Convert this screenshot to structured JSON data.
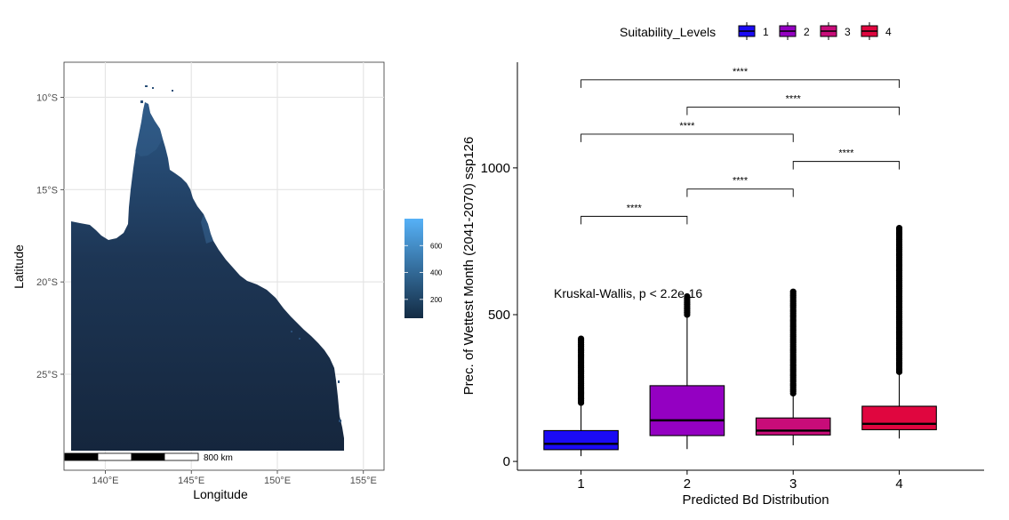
{
  "chart_data": [
    {
      "type": "heatmap",
      "subtype": "raster map",
      "xlabel": "Longitude",
      "ylabel": "Latitude",
      "x_ticks": [
        "140°E",
        "145°E",
        "150°E",
        "155°E"
      ],
      "y_ticks": [
        "10°S",
        "15°S",
        "20°S",
        "25°S"
      ],
      "xlim": [
        137.6,
        156.2
      ],
      "ylim": [
        -30.2,
        -8.1
      ],
      "colorbar": {
        "ticks": [
          200,
          400,
          600
        ],
        "range": [
          60,
          800
        ],
        "colors": [
          "#132B43",
          "#56B1F7"
        ]
      },
      "scalebar_label": "800 km",
      "grid": true
    },
    {
      "type": "box",
      "xlabel": "Predicted Bd Distribution",
      "ylabel": "Prec. of Wettest Month (2041-2070) ssp126",
      "categories": [
        "1",
        "2",
        "3",
        "4"
      ],
      "y_ticks": [
        0,
        500,
        1000
      ],
      "ylim": [
        -30,
        1360
      ],
      "legend": {
        "title": "Suitability_Levels",
        "placement": "top",
        "items": [
          {
            "label": "1",
            "color": "#1B0BF5"
          },
          {
            "label": "2",
            "color": "#9400C2"
          },
          {
            "label": "3",
            "color": "#C80C79"
          },
          {
            "label": "4",
            "color": "#E0063F"
          }
        ]
      },
      "series": [
        {
          "name": "1",
          "color": "#1B0BF5",
          "min": 18,
          "q1": 40,
          "median": 60,
          "q3": 105,
          "max": 200,
          "outlier_range": [
            200,
            418
          ]
        },
        {
          "name": "2",
          "color": "#9400C2",
          "min": 42,
          "q1": 88,
          "median": 140,
          "q3": 258,
          "max": 500,
          "outlier_range": [
            500,
            562
          ]
        },
        {
          "name": "3",
          "color": "#C80C79",
          "min": 55,
          "q1": 90,
          "median": 105,
          "q3": 148,
          "max": 232,
          "outlier_range": [
            232,
            578
          ]
        },
        {
          "name": "4",
          "color": "#E0063F",
          "min": 78,
          "q1": 108,
          "median": 128,
          "q3": 188,
          "max": 305,
          "outlier_range": [
            305,
            795
          ]
        }
      ],
      "annotation": "Kruskal-Wallis, p < 2.2e-16",
      "comparisons": [
        {
          "groups": [
            "1",
            "2"
          ],
          "label": "****",
          "y": 835
        },
        {
          "groups": [
            "2",
            "3"
          ],
          "label": "****",
          "y": 928
        },
        {
          "groups": [
            "3",
            "4"
          ],
          "label": "****",
          "y": 1022
        },
        {
          "groups": [
            "1",
            "3"
          ],
          "label": "****",
          "y": 1115
        },
        {
          "groups": [
            "2",
            "4"
          ],
          "label": "****",
          "y": 1207
        },
        {
          "groups": [
            "1",
            "4"
          ],
          "label": "****",
          "y": 1300
        }
      ]
    }
  ]
}
